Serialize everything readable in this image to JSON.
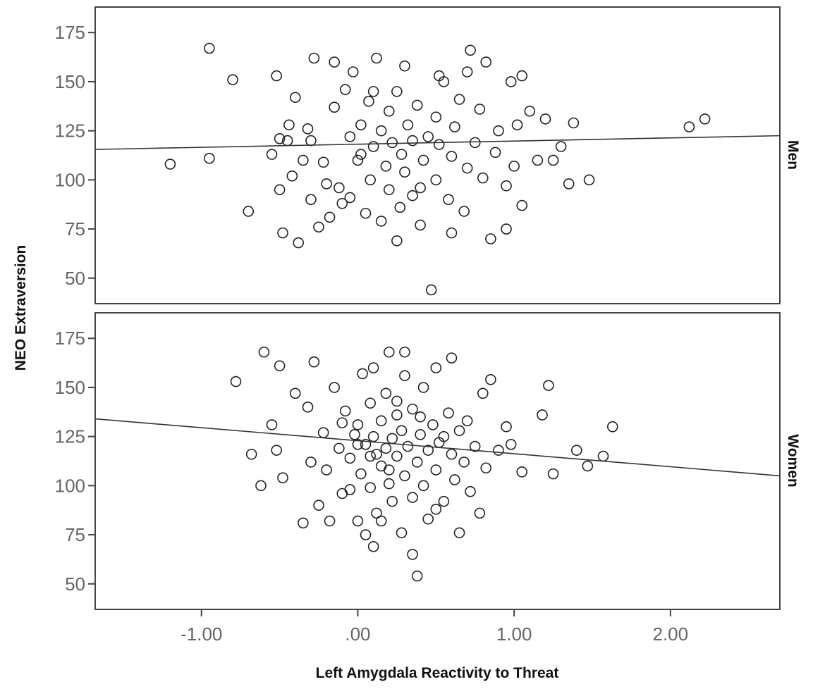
{
  "chart_data": {
    "type": "scatter",
    "xlabel": "Left Amygdala Reactivity to Threat",
    "ylabel": "NEO Extraversion",
    "xlim": [
      -1.68,
      2.7
    ],
    "ylim": [
      37,
      188
    ],
    "x_ticks": [
      -1.0,
      0.0,
      1.0,
      2.0
    ],
    "x_tick_labels": [
      "-1.00",
      ".00",
      "1.00",
      "2.00"
    ],
    "y_ticks": [
      50,
      75,
      100,
      125,
      150,
      175
    ],
    "y_tick_labels": [
      "50",
      "75",
      "100",
      "125",
      "150",
      "175"
    ],
    "grid": false,
    "marker": "open-circle",
    "colors": {
      "marker": "#222222",
      "fit_line": "#333333",
      "frame": "#444444",
      "axis_text": "#666666"
    },
    "panels": [
      {
        "label": "Men",
        "fit_line": {
          "x": [
            -1.68,
            2.7
          ],
          "y": [
            115.5,
            122.5
          ]
        },
        "points": [
          [
            -1.2,
            108
          ],
          [
            -0.95,
            167
          ],
          [
            -0.95,
            111
          ],
          [
            -0.8,
            151
          ],
          [
            -0.7,
            84
          ],
          [
            -0.55,
            113
          ],
          [
            -0.52,
            153
          ],
          [
            -0.5,
            95
          ],
          [
            -0.48,
            73
          ],
          [
            -0.45,
            120
          ],
          [
            -0.44,
            128
          ],
          [
            -0.42,
            102
          ],
          [
            -0.4,
            142
          ],
          [
            -0.38,
            68
          ],
          [
            -0.35,
            110
          ],
          [
            -0.32,
            126
          ],
          [
            -0.3,
            90
          ],
          [
            -0.3,
            120
          ],
          [
            -0.25,
            76
          ],
          [
            -0.22,
            109
          ],
          [
            -0.2,
            98
          ],
          [
            -0.18,
            81
          ],
          [
            -0.15,
            137
          ],
          [
            -0.12,
            96
          ],
          [
            -0.1,
            88
          ],
          [
            -0.08,
            146
          ],
          [
            -0.05,
            122
          ],
          [
            -0.05,
            91
          ],
          [
            -0.03,
            155
          ],
          [
            0.0,
            110
          ],
          [
            0.02,
            128
          ],
          [
            0.05,
            83
          ],
          [
            0.07,
            140
          ],
          [
            0.08,
            100
          ],
          [
            0.1,
            117
          ],
          [
            0.12,
            162
          ],
          [
            0.15,
            125
          ],
          [
            0.15,
            79
          ],
          [
            0.18,
            107
          ],
          [
            0.2,
            135
          ],
          [
            0.2,
            95
          ],
          [
            0.22,
            119
          ],
          [
            0.25,
            145
          ],
          [
            0.27,
            86
          ],
          [
            0.28,
            113
          ],
          [
            0.3,
            158
          ],
          [
            0.3,
            104
          ],
          [
            0.32,
            128
          ],
          [
            0.35,
            92
          ],
          [
            0.35,
            120
          ],
          [
            0.38,
            138
          ],
          [
            0.4,
            77
          ],
          [
            0.42,
            110
          ],
          [
            0.45,
            122
          ],
          [
            0.47,
            44
          ],
          [
            0.5,
            100
          ],
          [
            0.5,
            132
          ],
          [
            0.52,
            118
          ],
          [
            0.55,
            150
          ],
          [
            0.58,
            90
          ],
          [
            0.6,
            112
          ],
          [
            0.62,
            127
          ],
          [
            0.65,
            141
          ],
          [
            0.68,
            84
          ],
          [
            0.7,
            106
          ],
          [
            0.72,
            166
          ],
          [
            0.75,
            119
          ],
          [
            0.78,
            136
          ],
          [
            0.8,
            101
          ],
          [
            0.82,
            160
          ],
          [
            0.85,
            70
          ],
          [
            0.88,
            114
          ],
          [
            0.9,
            125
          ],
          [
            0.95,
            97
          ],
          [
            0.98,
            150
          ],
          [
            1.0,
            107
          ],
          [
            1.02,
            128
          ],
          [
            1.05,
            87
          ],
          [
            1.05,
            153
          ],
          [
            1.1,
            135
          ],
          [
            1.15,
            110
          ],
          [
            1.2,
            131
          ],
          [
            1.25,
            110
          ],
          [
            1.3,
            117
          ],
          [
            1.35,
            98
          ],
          [
            1.38,
            129
          ],
          [
            1.48,
            100
          ],
          [
            2.12,
            127
          ],
          [
            2.22,
            131
          ],
          [
            0.6,
            73
          ],
          [
            0.25,
            69
          ],
          [
            -0.15,
            160
          ],
          [
            0.52,
            153
          ],
          [
            0.02,
            113
          ],
          [
            0.4,
            96
          ],
          [
            0.1,
            145
          ],
          [
            -0.28,
            162
          ],
          [
            0.7,
            155
          ],
          [
            0.95,
            75
          ],
          [
            -0.5,
            121
          ]
        ]
      },
      {
        "label": "Women",
        "fit_line": {
          "x": [
            -1.68,
            2.7
          ],
          "y": [
            134,
            105
          ]
        },
        "points": [
          [
            -0.78,
            153
          ],
          [
            -0.68,
            116
          ],
          [
            -0.62,
            100
          ],
          [
            -0.6,
            168
          ],
          [
            -0.55,
            131
          ],
          [
            -0.52,
            118
          ],
          [
            -0.5,
            161
          ],
          [
            -0.48,
            104
          ],
          [
            -0.4,
            147
          ],
          [
            -0.35,
            81
          ],
          [
            -0.32,
            140
          ],
          [
            -0.3,
            112
          ],
          [
            -0.28,
            163
          ],
          [
            -0.25,
            90
          ],
          [
            -0.22,
            127
          ],
          [
            -0.2,
            108
          ],
          [
            -0.18,
            82
          ],
          [
            -0.15,
            150
          ],
          [
            -0.12,
            119
          ],
          [
            -0.1,
            96
          ],
          [
            -0.08,
            138
          ],
          [
            -0.05,
            114
          ],
          [
            -0.02,
            126
          ],
          [
            0.0,
            82
          ],
          [
            0.0,
            131
          ],
          [
            0.02,
            106
          ],
          [
            0.03,
            157
          ],
          [
            0.05,
            121
          ],
          [
            0.05,
            75
          ],
          [
            0.08,
            99
          ],
          [
            0.08,
            142
          ],
          [
            0.1,
            125
          ],
          [
            0.1,
            69
          ],
          [
            0.12,
            116
          ],
          [
            0.12,
            86
          ],
          [
            0.15,
            133
          ],
          [
            0.15,
            110
          ],
          [
            0.18,
            147
          ],
          [
            0.18,
            119
          ],
          [
            0.2,
            101
          ],
          [
            0.2,
            168
          ],
          [
            0.22,
            124
          ],
          [
            0.22,
            92
          ],
          [
            0.25,
            136
          ],
          [
            0.25,
            115
          ],
          [
            0.28,
            76
          ],
          [
            0.28,
            128
          ],
          [
            0.3,
            105
          ],
          [
            0.3,
            156
          ],
          [
            0.32,
            120
          ],
          [
            0.35,
            65
          ],
          [
            0.35,
            94
          ],
          [
            0.35,
            139
          ],
          [
            0.38,
            112
          ],
          [
            0.38,
            54
          ],
          [
            0.4,
            126
          ],
          [
            0.42,
            100
          ],
          [
            0.42,
            150
          ],
          [
            0.45,
            118
          ],
          [
            0.45,
            83
          ],
          [
            0.48,
            131
          ],
          [
            0.5,
            108
          ],
          [
            0.5,
            160
          ],
          [
            0.52,
            122
          ],
          [
            0.55,
            92
          ],
          [
            0.58,
            137
          ],
          [
            0.6,
            165
          ],
          [
            0.6,
            116
          ],
          [
            0.62,
            103
          ],
          [
            0.65,
            128
          ],
          [
            0.65,
            76
          ],
          [
            0.68,
            112
          ],
          [
            0.7,
            133
          ],
          [
            0.72,
            97
          ],
          [
            0.75,
            120
          ],
          [
            0.78,
            86
          ],
          [
            0.8,
            147
          ],
          [
            0.82,
            109
          ],
          [
            0.85,
            154
          ],
          [
            0.9,
            118
          ],
          [
            0.95,
            130
          ],
          [
            0.98,
            121
          ],
          [
            1.05,
            107
          ],
          [
            1.18,
            136
          ],
          [
            1.22,
            151
          ],
          [
            1.25,
            106
          ],
          [
            1.4,
            118
          ],
          [
            1.47,
            110
          ],
          [
            1.57,
            115
          ],
          [
            1.63,
            130
          ],
          [
            0.1,
            160
          ],
          [
            0.3,
            168
          ],
          [
            -0.05,
            98
          ],
          [
            0.15,
            82
          ],
          [
            0.5,
            88
          ],
          [
            0.25,
            143
          ],
          [
            0.0,
            121
          ],
          [
            -0.1,
            132
          ],
          [
            0.4,
            135
          ],
          [
            0.2,
            108
          ],
          [
            0.55,
            125
          ],
          [
            0.08,
            115
          ]
        ]
      }
    ],
    "panel_labels": [
      "Men",
      "Women"
    ]
  }
}
